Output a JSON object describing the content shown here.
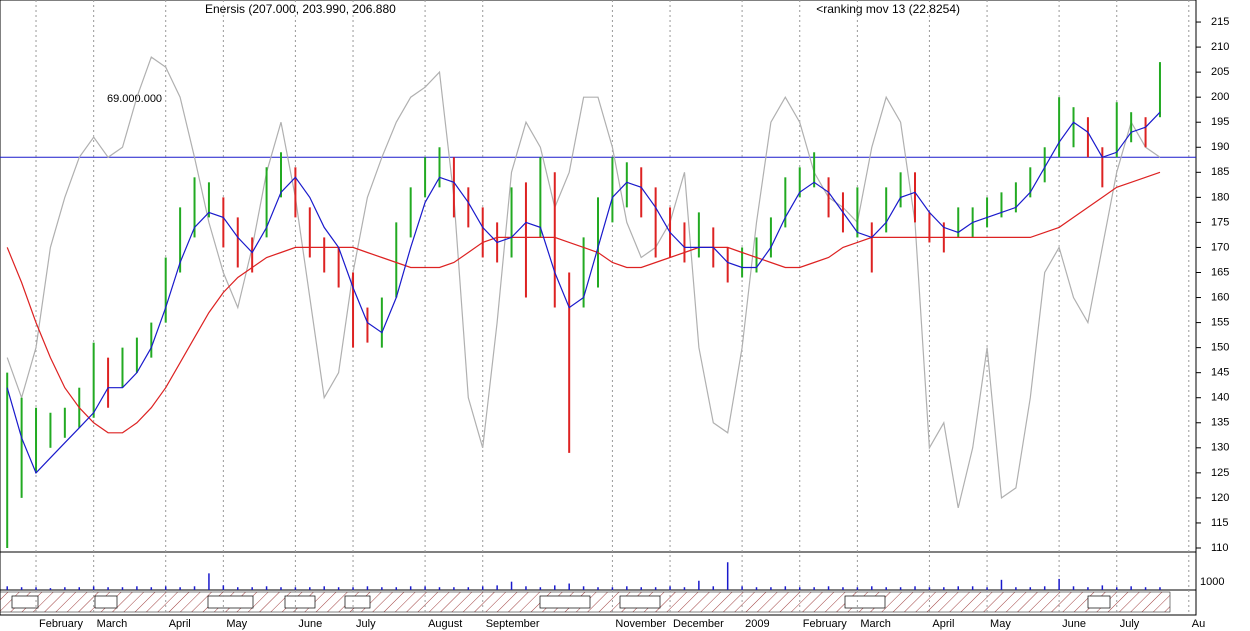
{
  "chart_data": {
    "type": "ohlc",
    "title": "Enersis (207.000, 203.990, 206.880",
    "subtitle": "<ranking mov 13 (22.8254)",
    "categories": [
      null,
      null,
      "February",
      null,
      null,
      null,
      "March",
      null,
      null,
      null,
      null,
      "April",
      null,
      null,
      null,
      "May",
      null,
      null,
      null,
      null,
      "June",
      null,
      null,
      null,
      "July",
      null,
      null,
      null,
      null,
      "August",
      null,
      null,
      null,
      "September",
      null,
      null,
      null,
      null,
      null,
      null,
      null,
      null,
      "November",
      null,
      null,
      null,
      "December",
      null,
      null,
      null,
      null,
      "2009",
      null,
      null,
      null,
      "February",
      null,
      null,
      null,
      "March",
      null,
      null,
      null,
      null,
      "April",
      null,
      null,
      null,
      "May",
      null,
      null,
      null,
      null,
      "June",
      null,
      null,
      null,
      "July",
      null,
      null,
      null,
      null,
      "Au"
    ],
    "high": [
      145,
      140,
      138,
      137,
      138,
      142,
      151,
      148,
      150,
      152,
      155,
      168,
      178,
      184,
      183,
      180,
      176,
      172,
      186,
      189,
      186,
      178,
      172,
      170,
      165,
      158,
      160,
      175,
      182,
      188,
      190,
      188,
      182,
      178,
      175,
      182,
      183,
      188,
      185,
      165,
      172,
      180,
      188,
      187,
      186,
      182,
      178,
      175,
      177,
      174,
      170,
      170,
      172,
      176,
      184,
      186,
      189,
      184,
      181,
      182,
      175,
      182,
      185,
      185,
      177,
      175,
      178,
      178,
      180,
      181,
      183,
      186,
      190,
      200,
      198,
      196,
      190,
      199,
      197,
      196,
      207,
      null,
      null
    ],
    "low": [
      110,
      120,
      125,
      130,
      132,
      134,
      136,
      138,
      142,
      145,
      148,
      155,
      165,
      172,
      176,
      170,
      166,
      165,
      172,
      180,
      176,
      168,
      165,
      162,
      150,
      151,
      150,
      160,
      172,
      180,
      182,
      176,
      174,
      168,
      167,
      168,
      160,
      172,
      158,
      129,
      158,
      162,
      175,
      178,
      176,
      168,
      168,
      167,
      168,
      166,
      163,
      164,
      165,
      168,
      174,
      180,
      182,
      176,
      173,
      172,
      165,
      173,
      178,
      175,
      171,
      169,
      172,
      172,
      174,
      176,
      177,
      180,
      183,
      188,
      190,
      188,
      182,
      188,
      191,
      190,
      196,
      null,
      null
    ],
    "up_color": "#22aa22",
    "down_color": "#dd2222",
    "lines": [
      {
        "color": "#b0b0b0",
        "values": [
          148,
          140,
          150,
          170,
          180,
          188,
          192,
          188,
          190,
          200,
          208,
          206,
          200,
          188,
          175,
          165,
          158,
          170,
          185,
          195,
          180,
          160,
          140,
          145,
          165,
          180,
          188,
          195,
          200,
          202,
          205,
          180,
          140,
          130,
          155,
          185,
          195,
          190,
          178,
          185,
          200,
          200,
          190,
          175,
          168,
          170,
          175,
          185,
          150,
          135,
          133,
          150,
          175,
          195,
          200,
          195,
          185,
          180,
          178,
          175,
          190,
          200,
          195,
          175,
          130,
          135,
          118,
          130,
          150,
          120,
          122,
          140,
          165,
          170,
          160,
          155,
          170,
          185,
          195,
          190,
          188,
          null,
          null
        ]
      },
      {
        "color": "#dd2222",
        "values": [
          170,
          163,
          155,
          148,
          142,
          138,
          135,
          133,
          133,
          135,
          138,
          142,
          147,
          152,
          157,
          161,
          164,
          166,
          168,
          169,
          170,
          170,
          170,
          170,
          170,
          169,
          168,
          167,
          166,
          166,
          166,
          167,
          169,
          171,
          172,
          172,
          172,
          172,
          172,
          171,
          170,
          169,
          167,
          166,
          166,
          167,
          168,
          169,
          170,
          170,
          170,
          169,
          168,
          167,
          166,
          166,
          167,
          168,
          170,
          171,
          172,
          172,
          172,
          172,
          172,
          172,
          172,
          172,
          172,
          172,
          172,
          172,
          173,
          174,
          176,
          178,
          180,
          182,
          183,
          184,
          185,
          null,
          null
        ]
      },
      {
        "color": "#1a1acc",
        "values": [
          142,
          132,
          125,
          128,
          131,
          134,
          137,
          142,
          142,
          145,
          150,
          158,
          167,
          174,
          177,
          176,
          172,
          169,
          174,
          181,
          184,
          180,
          174,
          170,
          162,
          155,
          153,
          160,
          170,
          179,
          184,
          183,
          179,
          174,
          171,
          172,
          175,
          174,
          165,
          158,
          160,
          170,
          180,
          183,
          182,
          178,
          173,
          170,
          170,
          170,
          167,
          166,
          166,
          170,
          176,
          181,
          183,
          181,
          177,
          173,
          172,
          175,
          180,
          181,
          177,
          174,
          173,
          175,
          176,
          177,
          178,
          181,
          186,
          191,
          195,
          193,
          188,
          189,
          193,
          194,
          197,
          null,
          null
        ]
      }
    ],
    "hline": {
      "value": 188,
      "label": "69.000.000",
      "color": "#1a1acc"
    },
    "ylim": [
      109.2,
      219.4
    ],
    "yticks": [
      110,
      115,
      120,
      125,
      130,
      135,
      140,
      145,
      150,
      155,
      160,
      165,
      170,
      175,
      180,
      185,
      190,
      195,
      200,
      205,
      210,
      215
    ],
    "volume": [
      4,
      3,
      3,
      2,
      3,
      3,
      4,
      3,
      3,
      4,
      3,
      4,
      3,
      4,
      18,
      5,
      3,
      3,
      4,
      3,
      3,
      3,
      4,
      3,
      3,
      4,
      3,
      3,
      4,
      4,
      3,
      3,
      3,
      4,
      5,
      9,
      4,
      3,
      5,
      7,
      4,
      3,
      3,
      4,
      3,
      3,
      4,
      3,
      10,
      4,
      30,
      4,
      3,
      3,
      4,
      3,
      3,
      4,
      3,
      3,
      4,
      3,
      3,
      4,
      3,
      3,
      4,
      4,
      3,
      11,
      3,
      3,
      4,
      12,
      4,
      3,
      5,
      3,
      4,
      3,
      3,
      null,
      null
    ],
    "volume_color": "#1a1acc",
    "volume_ylim": [
      0,
      40
    ],
    "volume_label": "1000"
  }
}
